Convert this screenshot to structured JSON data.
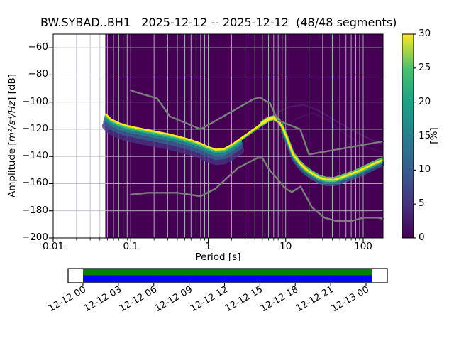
{
  "title": "BW.SYBAD..BH1   2025-12-12 -- 2025-12-12  (48/48 segments)",
  "chart_data": {
    "type": "heatmap",
    "subtype": "ppsd-probabilistic-power-spectral-density",
    "title": "BW.SYBAD..BH1   2025-12-12 -- 2025-12-12  (48/48 segments)",
    "xlabel": "Period [s]",
    "ylabel": "Amplitude [m²/s⁴/Hz] [dB]",
    "ylabel_parts": {
      "prefix": "Amplitude [",
      "unit": "m²/s⁴/Hz",
      "suffix": "] [dB]"
    },
    "x_axis": {
      "scale": "log",
      "range_s": [
        0.01,
        180
      ],
      "tick_values": [
        0.01,
        0.1,
        1,
        10,
        100
      ],
      "tick_labels": [
        "0.01",
        "0.1",
        "1",
        "10",
        "100"
      ],
      "grid": true
    },
    "y_axis": {
      "range_db": [
        -200,
        -50
      ],
      "tick_values": [
        -200,
        -180,
        -160,
        -140,
        -120,
        -100,
        -80,
        -60
      ],
      "tick_labels": [
        "−200",
        "−180",
        "−160",
        "−140",
        "−120",
        "−100",
        "−80",
        "−60"
      ],
      "grid": true
    },
    "data_start_period_s": 0.047,
    "colors": {
      "histogram_background": "#440154",
      "grid": "#bdb9c6",
      "noise_model": "#7d7d7d",
      "mode_line": "#fde725"
    },
    "mode_curve_period_db": [
      [
        0.048,
        -109
      ],
      [
        0.055,
        -112.5
      ],
      [
        0.07,
        -115.5
      ],
      [
        0.09,
        -117.5
      ],
      [
        0.12,
        -119
      ],
      [
        0.16,
        -120.5
      ],
      [
        0.22,
        -122
      ],
      [
        0.3,
        -123.5
      ],
      [
        0.42,
        -125.5
      ],
      [
        0.6,
        -128
      ],
      [
        0.8,
        -130.5
      ],
      [
        1.0,
        -133
      ],
      [
        1.25,
        -135
      ],
      [
        1.6,
        -134.5
      ],
      [
        2.0,
        -131.5
      ],
      [
        2.6,
        -127
      ],
      [
        3.2,
        -123.5
      ],
      [
        4.0,
        -119.5
      ],
      [
        5.0,
        -115.5
      ],
      [
        6.0,
        -112.5
      ],
      [
        7.0,
        -111.5
      ],
      [
        8.0,
        -113.5
      ],
      [
        9.0,
        -118
      ],
      [
        10.5,
        -127
      ],
      [
        12.5,
        -138.5
      ],
      [
        15,
        -144.5
      ],
      [
        18,
        -149
      ],
      [
        22,
        -152.5
      ],
      [
        27,
        -155.5
      ],
      [
        33,
        -157
      ],
      [
        42,
        -157.2
      ],
      [
        52,
        -155.5
      ],
      [
        65,
        -153.5
      ],
      [
        85,
        -151
      ],
      [
        110,
        -148
      ],
      [
        140,
        -145
      ],
      [
        180,
        -142.5
      ]
    ],
    "noise_models": {
      "high_nhnm_period_db": [
        [
          0.1,
          -91.5
        ],
        [
          0.22,
          -97.4
        ],
        [
          0.32,
          -110.5
        ],
        [
          0.8,
          -120.0
        ],
        [
          3.8,
          -98.0
        ],
        [
          4.6,
          -96.5
        ],
        [
          6.3,
          -101.0
        ],
        [
          7.9,
          -113.5
        ],
        [
          15.4,
          -120.0
        ],
        [
          20.0,
          -138.5
        ],
        [
          180,
          -128.9
        ]
      ],
      "low_nlnm_period_db": [
        [
          0.1,
          -168.0
        ],
        [
          0.17,
          -166.7
        ],
        [
          0.4,
          -166.7
        ],
        [
          0.8,
          -169.2
        ],
        [
          1.24,
          -163.7
        ],
        [
          2.4,
          -148.6
        ],
        [
          4.3,
          -141.1
        ],
        [
          5.0,
          -141.1
        ],
        [
          6.0,
          -149.0
        ],
        [
          10.0,
          -163.8
        ],
        [
          12.0,
          -166.2
        ],
        [
          15.6,
          -162.1
        ],
        [
          21.9,
          -177.5
        ],
        [
          31.6,
          -185.0
        ],
        [
          45.0,
          -187.5
        ],
        [
          70.0,
          -187.5
        ],
        [
          101.0,
          -185.0
        ],
        [
          154.0,
          -185.0
        ],
        [
          180,
          -185.8
        ]
      ]
    },
    "faint_traces": [
      {
        "opacity": 0.22,
        "points": [
          [
            7,
            -109
          ],
          [
            11,
            -103.5
          ],
          [
            17,
            -102
          ],
          [
            26,
            -106
          ],
          [
            45,
            -114
          ],
          [
            80,
            -122
          ],
          [
            130,
            -128
          ],
          [
            180,
            -131
          ]
        ]
      },
      {
        "opacity": 0.12,
        "points": [
          [
            9,
            -121
          ],
          [
            14,
            -112
          ],
          [
            22,
            -108
          ],
          [
            35,
            -113
          ],
          [
            60,
            -124
          ],
          [
            110,
            -133
          ],
          [
            180,
            -137
          ]
        ]
      }
    ],
    "colorbar": {
      "label": "[%]",
      "min": 0,
      "max": 30,
      "tick_values": [
        0,
        5,
        10,
        15,
        20,
        25,
        30
      ],
      "tick_labels": [
        "0",
        "5",
        "10",
        "15",
        "20",
        "25",
        "30"
      ],
      "viridis_stops": [
        [
          0,
          "#440154"
        ],
        [
          0.17,
          "#46327e"
        ],
        [
          0.33,
          "#365c8d"
        ],
        [
          0.5,
          "#277f8e"
        ],
        [
          0.67,
          "#1fa187"
        ],
        [
          0.83,
          "#4ac16d"
        ],
        [
          1,
          "#fde725"
        ]
      ]
    }
  },
  "timeline": {
    "tick_labels": [
      "12-12 00",
      "12-12 03",
      "12-12 06",
      "12-12 09",
      "12-12 12",
      "12-12 15",
      "12-12 18",
      "12-12 21",
      "12-13 00"
    ],
    "coverage_color": "#008000",
    "data_color": "#0000ff"
  }
}
